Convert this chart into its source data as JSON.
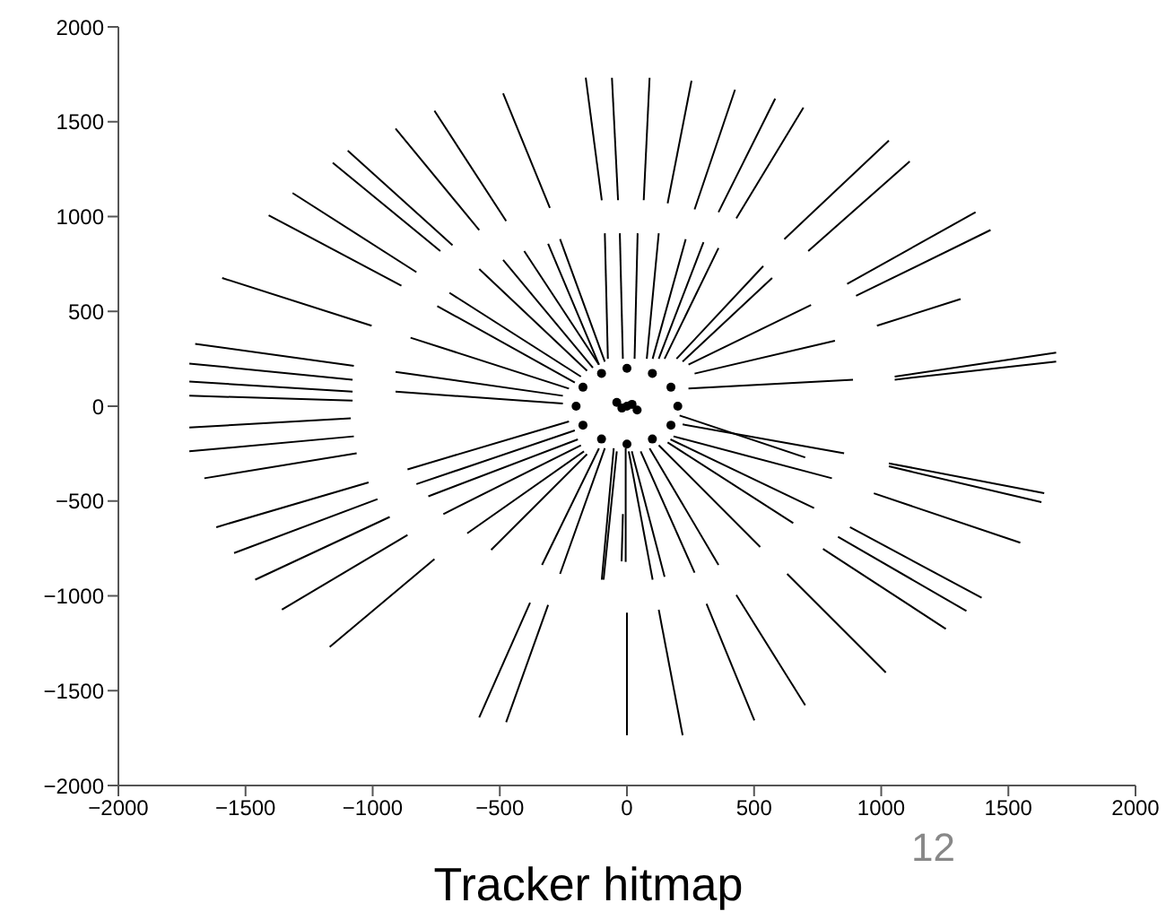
{
  "chart_data": {
    "type": "line",
    "title": "Tracker hitmap",
    "annotations": [
      "12"
    ],
    "xlim": [
      -2000,
      2000
    ],
    "ylim": [
      -2000,
      2000
    ],
    "xticks": [
      -2000,
      -1500,
      -1000,
      -500,
      0,
      500,
      1000,
      1500,
      2000
    ],
    "yticks": [
      -2000,
      -1500,
      -1000,
      -500,
      0,
      500,
      1000,
      1500,
      2000
    ],
    "marker": "none",
    "line_style": "solid",
    "series": [
      {
        "color": "#000000",
        "x": [
          -487,
          -303
        ],
        "values": [
          1650,
          1045
        ]
      },
      {
        "color": "#000000",
        "x": [
          -757,
          -475
        ],
        "values": [
          1558,
          976
        ]
      },
      {
        "color": "#000000",
        "x": [
          -910,
          -581
        ],
        "values": [
          1464,
          929
        ]
      },
      {
        "color": "#000000",
        "x": [
          -1098,
          -686
        ],
        "values": [
          1348,
          849
        ]
      },
      {
        "color": "#000000",
        "x": [
          -1157,
          -734
        ],
        "values": [
          1284,
          818
        ]
      },
      {
        "color": "#000000",
        "x": [
          -1315,
          -828
        ],
        "values": [
          1124,
          707
        ]
      },
      {
        "color": "#000000",
        "x": [
          -1409,
          -887
        ],
        "values": [
          1007,
          635
        ]
      },
      {
        "color": "#000000",
        "x": [
          -1592,
          -1004
        ],
        "values": [
          676,
          424
        ]
      },
      {
        "color": "#000000",
        "x": [
          -1698,
          -1074
        ],
        "values": [
          329,
          213
        ]
      },
      {
        "color": "#000000",
        "x": [
          -1721,
          -1079
        ],
        "values": [
          225,
          140
        ]
      },
      {
        "color": "#000000",
        "x": [
          -1721,
          -1079
        ],
        "values": [
          130,
          77
        ]
      },
      {
        "color": "#000000",
        "x": [
          -1721,
          -1079
        ],
        "values": [
          55,
          30
        ]
      },
      {
        "color": "#000000",
        "x": [
          -162,
          -99
        ],
        "values": [
          1732,
          1086
        ]
      },
      {
        "color": "#000000",
        "x": [
          -59,
          -35
        ],
        "values": [
          1732,
          1086
        ]
      },
      {
        "color": "#000000",
        "x": [
          89,
          66
        ],
        "values": [
          1732,
          1086
        ]
      },
      {
        "color": "#000000",
        "x": [
          254,
          160
        ],
        "values": [
          1716,
          1070
        ]
      },
      {
        "color": "#000000",
        "x": [
          425,
          266
        ],
        "values": [
          1669,
          1038
        ]
      },
      {
        "color": "#000000",
        "x": [
          583,
          360
        ],
        "values": [
          1622,
          1023
        ]
      },
      {
        "color": "#000000",
        "x": [
          694,
          430
        ],
        "values": [
          1574,
          991
        ]
      },
      {
        "color": "#000000",
        "x": [
          1030,
          619
        ],
        "values": [
          1401,
          881
        ]
      },
      {
        "color": "#000000",
        "x": [
          1112,
          713
        ],
        "values": [
          1291,
          818
        ]
      },
      {
        "color": "#000000",
        "x": [
          1371,
          866
        ],
        "values": [
          1023,
          645
        ]
      },
      {
        "color": "#000000",
        "x": [
          1430,
          901
        ],
        "values": [
          929,
          582
        ]
      },
      {
        "color": "#000000",
        "x": [
          1312,
          983
        ],
        "values": [
          565,
          424
        ]
      },
      {
        "color": "#000000",
        "x": [
          1688,
          1053
        ],
        "values": [
          282,
          156
        ]
      },
      {
        "color": "#000000",
        "x": [
          1688,
          1053
        ],
        "values": [
          235,
          140
        ]
      },
      {
        "color": "#000000",
        "x": [
          -87,
          -75
        ],
        "values": [
          912,
          250
        ]
      },
      {
        "color": "#000000",
        "x": [
          -28,
          -16
        ],
        "values": [
          912,
          250
        ]
      },
      {
        "color": "#000000",
        "x": [
          -263,
          -87
        ],
        "values": [
          881,
          235
        ]
      },
      {
        "color": "#000000",
        "x": [
          -310,
          -110
        ],
        "values": [
          856,
          219
        ]
      },
      {
        "color": "#000000",
        "x": [
          -404,
          -110
        ],
        "values": [
          818,
          219
        ]
      },
      {
        "color": "#000000",
        "x": [
          -487,
          -134
        ],
        "values": [
          771,
          203
        ]
      },
      {
        "color": "#000000",
        "x": [
          -581,
          -157
        ],
        "values": [
          723,
          187
        ]
      },
      {
        "color": "#000000",
        "x": [
          -698,
          -181
        ],
        "values": [
          598,
          156
        ]
      },
      {
        "color": "#000000",
        "x": [
          -746,
          -205
        ],
        "values": [
          528,
          125
        ]
      },
      {
        "color": "#000000",
        "x": [
          -851,
          -228
        ],
        "values": [
          361,
          93
        ]
      },
      {
        "color": "#000000",
        "x": [
          -910,
          -252
        ],
        "values": [
          181,
          55
        ]
      },
      {
        "color": "#000000",
        "x": [
          -910,
          -252
        ],
        "values": [
          77,
          14
        ]
      },
      {
        "color": "#000000",
        "x": [
          42,
          30
        ],
        "values": [
          912,
          250
        ]
      },
      {
        "color": "#000000",
        "x": [
          125,
          78
        ],
        "values": [
          912,
          250
        ]
      },
      {
        "color": "#000000",
        "x": [
          231,
          101
        ],
        "values": [
          881,
          250
        ]
      },
      {
        "color": "#000000",
        "x": [
          301,
          125
        ],
        "values": [
          865,
          250
        ]
      },
      {
        "color": "#000000",
        "x": [
          360,
          148
        ],
        "values": [
          834,
          250
        ]
      },
      {
        "color": "#000000",
        "x": [
          536,
          195
        ],
        "values": [
          739,
          250
        ]
      },
      {
        "color": "#000000",
        "x": [
          571,
          219
        ],
        "values": [
          676,
          235
        ]
      },
      {
        "color": "#000000",
        "x": [
          724,
          242
        ],
        "values": [
          534,
          219
        ]
      },
      {
        "color": "#000000",
        "x": [
          818,
          266
        ],
        "values": [
          345,
          172
        ]
      },
      {
        "color": "#000000",
        "x": [
          889,
          242
        ],
        "values": [
          140,
          93
        ]
      },
      {
        "color": "#000000",
        "x": [
          -1721,
          -1086
        ],
        "values": [
          -112,
          -64
        ]
      },
      {
        "color": "#000000",
        "x": [
          -1721,
          -1074
        ],
        "values": [
          -238,
          -159
        ]
      },
      {
        "color": "#000000",
        "x": [
          -1662,
          -1063
        ],
        "values": [
          -380,
          -248
        ]
      },
      {
        "color": "#000000",
        "x": [
          -1615,
          -1016
        ],
        "values": [
          -638,
          -402
        ]
      },
      {
        "color": "#000000",
        "x": [
          -1545,
          -981
        ],
        "values": [
          -774,
          -490
        ]
      },
      {
        "color": "#000000",
        "x": [
          -1462,
          -933
        ],
        "values": [
          -915,
          -584
        ]
      },
      {
        "color": "#000000",
        "x": [
          -1357,
          -863
        ],
        "values": [
          -1073,
          -679
        ]
      },
      {
        "color": "#000000",
        "x": [
          -1169,
          -757
        ],
        "values": [
          -1269,
          -806
        ]
      },
      {
        "color": "#000000",
        "x": [
          -581,
          -381
        ],
        "values": [
          -1641,
          -1036
        ]
      },
      {
        "color": "#000000",
        "x": [
          -475,
          -310
        ],
        "values": [
          -1666,
          -1048
        ]
      },
      {
        "color": "#000000",
        "x": [
          0,
          0
        ],
        "values": [
          -1089,
          -1735
        ]
      },
      {
        "color": "#000000",
        "x": [
          -863,
          -228
        ],
        "values": [
          -333,
          -80
        ]
      },
      {
        "color": "#000000",
        "x": [
          -828,
          -205
        ],
        "values": [
          -411,
          -128
        ]
      },
      {
        "color": "#000000",
        "x": [
          -781,
          -193
        ],
        "values": [
          -475,
          -175
        ]
      },
      {
        "color": "#000000",
        "x": [
          -722,
          -181
        ],
        "values": [
          -569,
          -206
        ]
      },
      {
        "color": "#000000",
        "x": [
          -628,
          -169
        ],
        "values": [
          -670,
          -238
        ]
      },
      {
        "color": "#000000",
        "x": [
          -534,
          -157
        ],
        "values": [
          -758,
          -253
        ]
      },
      {
        "color": "#000000",
        "x": [
          -334,
          -110
        ],
        "values": [
          -837,
          -222
        ]
      },
      {
        "color": "#000000",
        "x": [
          -263,
          -87
        ],
        "values": [
          -884,
          -222
        ]
      },
      {
        "color": "#000000",
        "x": [
          -92,
          -40
        ],
        "values": [
          -915,
          -238
        ]
      },
      {
        "color": "#000000",
        "x": [
          -21,
          -16
        ],
        "values": [
          -818,
          -569
        ]
      },
      {
        "color": "#000000",
        "x": [
          219,
          125
        ],
        "values": [
          -1735,
          -1073
        ]
      },
      {
        "color": "#000000",
        "x": [
          501,
          313
        ],
        "values": [
          -1657,
          -1042
        ]
      },
      {
        "color": "#000000",
        "x": [
          701,
          430
        ],
        "values": [
          -1577,
          -995
        ]
      },
      {
        "color": "#000000",
        "x": [
          1018,
          630
        ],
        "values": [
          -1404,
          -884
        ]
      },
      {
        "color": "#000000",
        "x": [
          1254,
          771
        ],
        "values": [
          -1174,
          -752
        ]
      },
      {
        "color": "#000000",
        "x": [
          1335,
          830
        ],
        "values": [
          -1080,
          -688
        ]
      },
      {
        "color": "#000000",
        "x": [
          1395,
          877
        ],
        "values": [
          -1010,
          -638
        ]
      },
      {
        "color": "#000000",
        "x": [
          1547,
          971
        ],
        "values": [
          -720,
          -459
        ]
      },
      {
        "color": "#000000",
        "x": [
          1630,
          1030
        ],
        "values": [
          -506,
          -317
        ]
      },
      {
        "color": "#000000",
        "x": [
          1641,
          1030
        ],
        "values": [
          -459,
          -301
        ]
      },
      {
        "color": "#000000",
        "x": [
          701,
          207
        ],
        "values": [
          -270,
          -49
        ]
      },
      {
        "color": "#000000",
        "x": [
          854,
          219
        ],
        "values": [
          -248,
          -96
        ]
      },
      {
        "color": "#000000",
        "x": [
          806,
          183
        ],
        "values": [
          -380,
          -159
        ]
      },
      {
        "color": "#000000",
        "x": [
          736,
          171
        ],
        "values": [
          -537,
          -175
        ]
      },
      {
        "color": "#000000",
        "x": [
          654,
          160
        ],
        "values": [
          -616,
          -191
        ]
      },
      {
        "color": "#000000",
        "x": [
          524,
          125
        ],
        "values": [
          -742,
          -206
        ]
      },
      {
        "color": "#000000",
        "x": [
          360,
          89
        ],
        "values": [
          -837,
          -222
        ]
      },
      {
        "color": "#000000",
        "x": [
          266,
          54
        ],
        "values": [
          -878,
          -238
        ]
      },
      {
        "color": "#000000",
        "x": [
          148,
          19
        ],
        "values": [
          -900,
          -238
        ]
      },
      {
        "color": "#000000",
        "x": [
          101,
          7
        ],
        "values": [
          -915,
          -238
        ]
      },
      {
        "color": "#000000",
        "x": [
          -99,
          -52
        ],
        "values": [
          -915,
          -222
        ]
      },
      {
        "color": "#000000",
        "x": [
          -5,
          -5
        ],
        "values": [
          -222,
          -821
        ]
      },
      {
        "type": "scatter",
        "marker": "circle",
        "color": "#000000",
        "x": [
          200,
          173,
          100,
          0,
          -100,
          -173,
          -200,
          -173,
          -100,
          0,
          100,
          173,
          0,
          -20,
          20,
          -40,
          40
        ],
        "values": [
          0,
          100,
          173,
          200,
          173,
          100,
          0,
          -100,
          -173,
          -200,
          -173,
          -100,
          0,
          -10,
          10,
          20,
          -20
        ]
      }
    ]
  }
}
